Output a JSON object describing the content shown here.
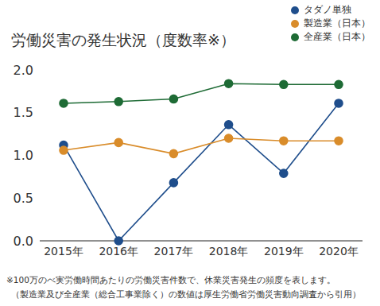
{
  "chart_data": {
    "type": "line",
    "title": "労働災害の発生状況（度数率※）",
    "categories": [
      "2015年",
      "2016年",
      "2017年",
      "2018年",
      "2019年",
      "2020年"
    ],
    "series": [
      {
        "name": "タダノ単独",
        "color": "#1f4e8c",
        "values": [
          1.12,
          0.0,
          0.68,
          1.36,
          0.79,
          1.61
        ]
      },
      {
        "name": "製造業（日本）",
        "color": "#d98c2a",
        "values": [
          1.06,
          1.15,
          1.02,
          1.2,
          1.17,
          1.17
        ]
      },
      {
        "name": "全産業（日本）",
        "color": "#1e6b35",
        "values": [
          1.61,
          1.63,
          1.66,
          1.84,
          1.83,
          1.83
        ]
      }
    ],
    "ylim": [
      0,
      2
    ],
    "yticks": [
      {
        "value": 0,
        "label": "0.0"
      },
      0.5,
      {
        "value": 1,
        "label": "1.0"
      },
      1.5,
      {
        "value": 2,
        "label": "2.0"
      }
    ],
    "grid": false,
    "legend": "top-right",
    "marker": "circle",
    "annotations": [
      "※100万のべ実労働時間あたりの労働災害件数で、休業災害発生の頻度を表します。",
      "（製造業及び全産業（総合工事業除く）の数値は厚生労働省労働災害動向調査から引用）"
    ]
  }
}
